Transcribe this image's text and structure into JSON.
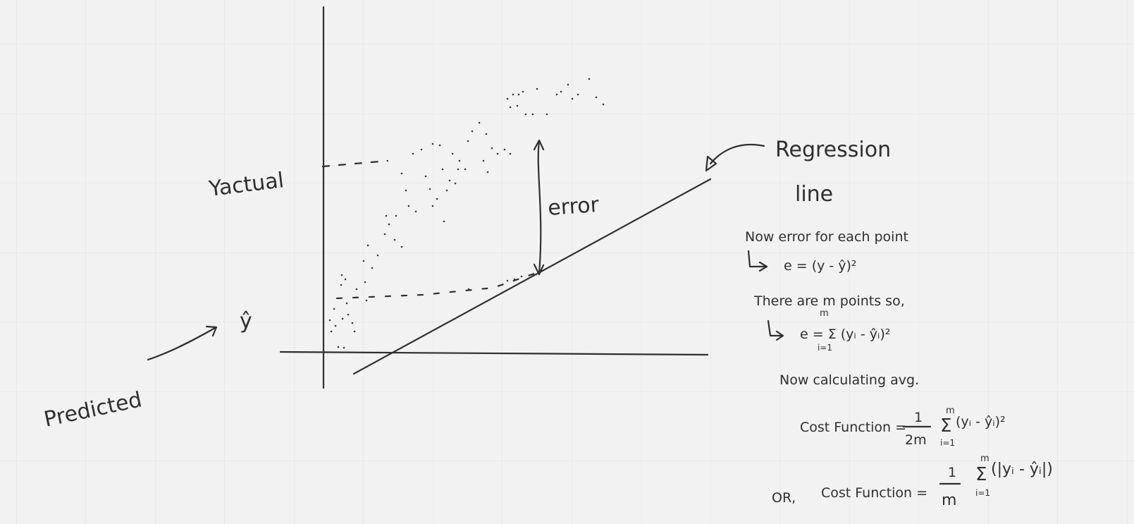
{
  "canvas": {
    "background": "#f2f2f2",
    "grid_color": "#e1e1e1",
    "ink_color": "#2f2f2f"
  },
  "labels": {
    "y_actual": "Yactual",
    "y_hat": "ŷ",
    "predicted": "Predicted",
    "error": "error",
    "regression_line": [
      "Regression",
      "line"
    ]
  },
  "notes": {
    "error_each_point": "Now error for each point",
    "error_formula": "e = (y - ŷ)²",
    "m_points": "There are m points so,",
    "sum_formula": "e = Σ (yᵢ - ŷᵢ)²",
    "sum_upper": "m",
    "sum_lower": "i=1",
    "avg_heading": "Now calculating avg.",
    "cost_label_1": "Cost Function =",
    "cost_frac_1": {
      "num": "1",
      "den": "2m"
    },
    "cost_terms_1": "(yᵢ - ŷᵢ)²",
    "or_label": "OR,",
    "cost_label_2": "Cost Function =",
    "cost_frac_2": {
      "num": "1",
      "den": "m"
    },
    "cost_terms_2": "(|yᵢ - ŷᵢ|)"
  }
}
